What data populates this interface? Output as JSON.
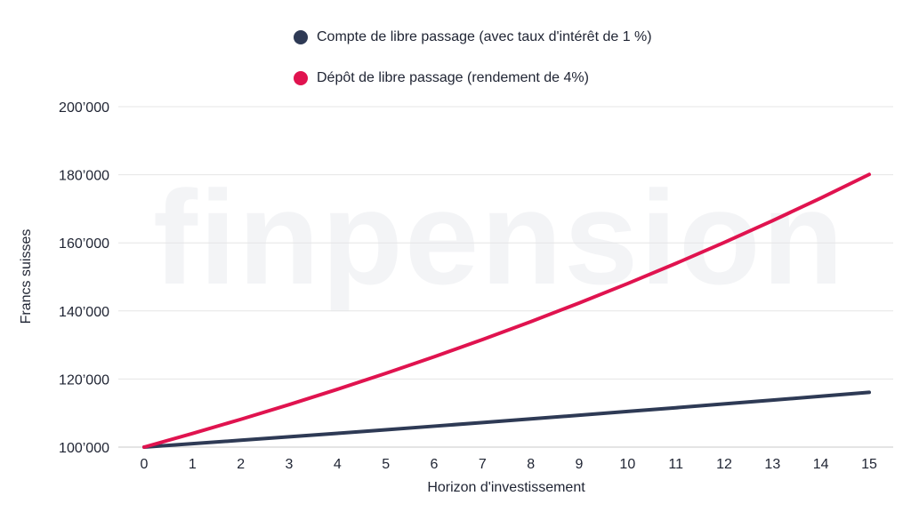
{
  "watermark": "finpension",
  "colors": {
    "series_1": "#2e3a55",
    "series_2": "#e0134f",
    "grid": "#e5e5e5",
    "text": "#1f2433"
  },
  "chart_data": {
    "type": "line",
    "xlabel": "Horizon d'investissement",
    "ylabel": "Francs suisses",
    "x": [
      0,
      1,
      2,
      3,
      4,
      5,
      6,
      7,
      8,
      9,
      10,
      11,
      12,
      13,
      14,
      15
    ],
    "xlim": [
      0,
      15
    ],
    "ylim": [
      100000,
      200000
    ],
    "yticks": [
      100000,
      120000,
      140000,
      160000,
      180000,
      200000
    ],
    "ytick_labels": [
      "100’000",
      "120’000",
      "140’000",
      "160’000",
      "180’000",
      "200’000"
    ],
    "grid": true,
    "legend_position": "top",
    "series": [
      {
        "name": "Compte de libre passage (avec taux d'intérêt de 1 %)",
        "color": "#2e3a55",
        "values": [
          100000,
          101000,
          102010,
          103030,
          104060,
          105101,
          106152,
          107214,
          108286,
          109369,
          110462,
          111567,
          112683,
          113809,
          114947,
          116097
        ]
      },
      {
        "name": "Dépôt de libre passage (rendement de 4%)",
        "color": "#e0134f",
        "values": [
          100000,
          104000,
          108160,
          112486,
          116986,
          121665,
          126532,
          131593,
          136857,
          142331,
          148024,
          153945,
          160103,
          166507,
          173168,
          180094
        ]
      }
    ]
  }
}
